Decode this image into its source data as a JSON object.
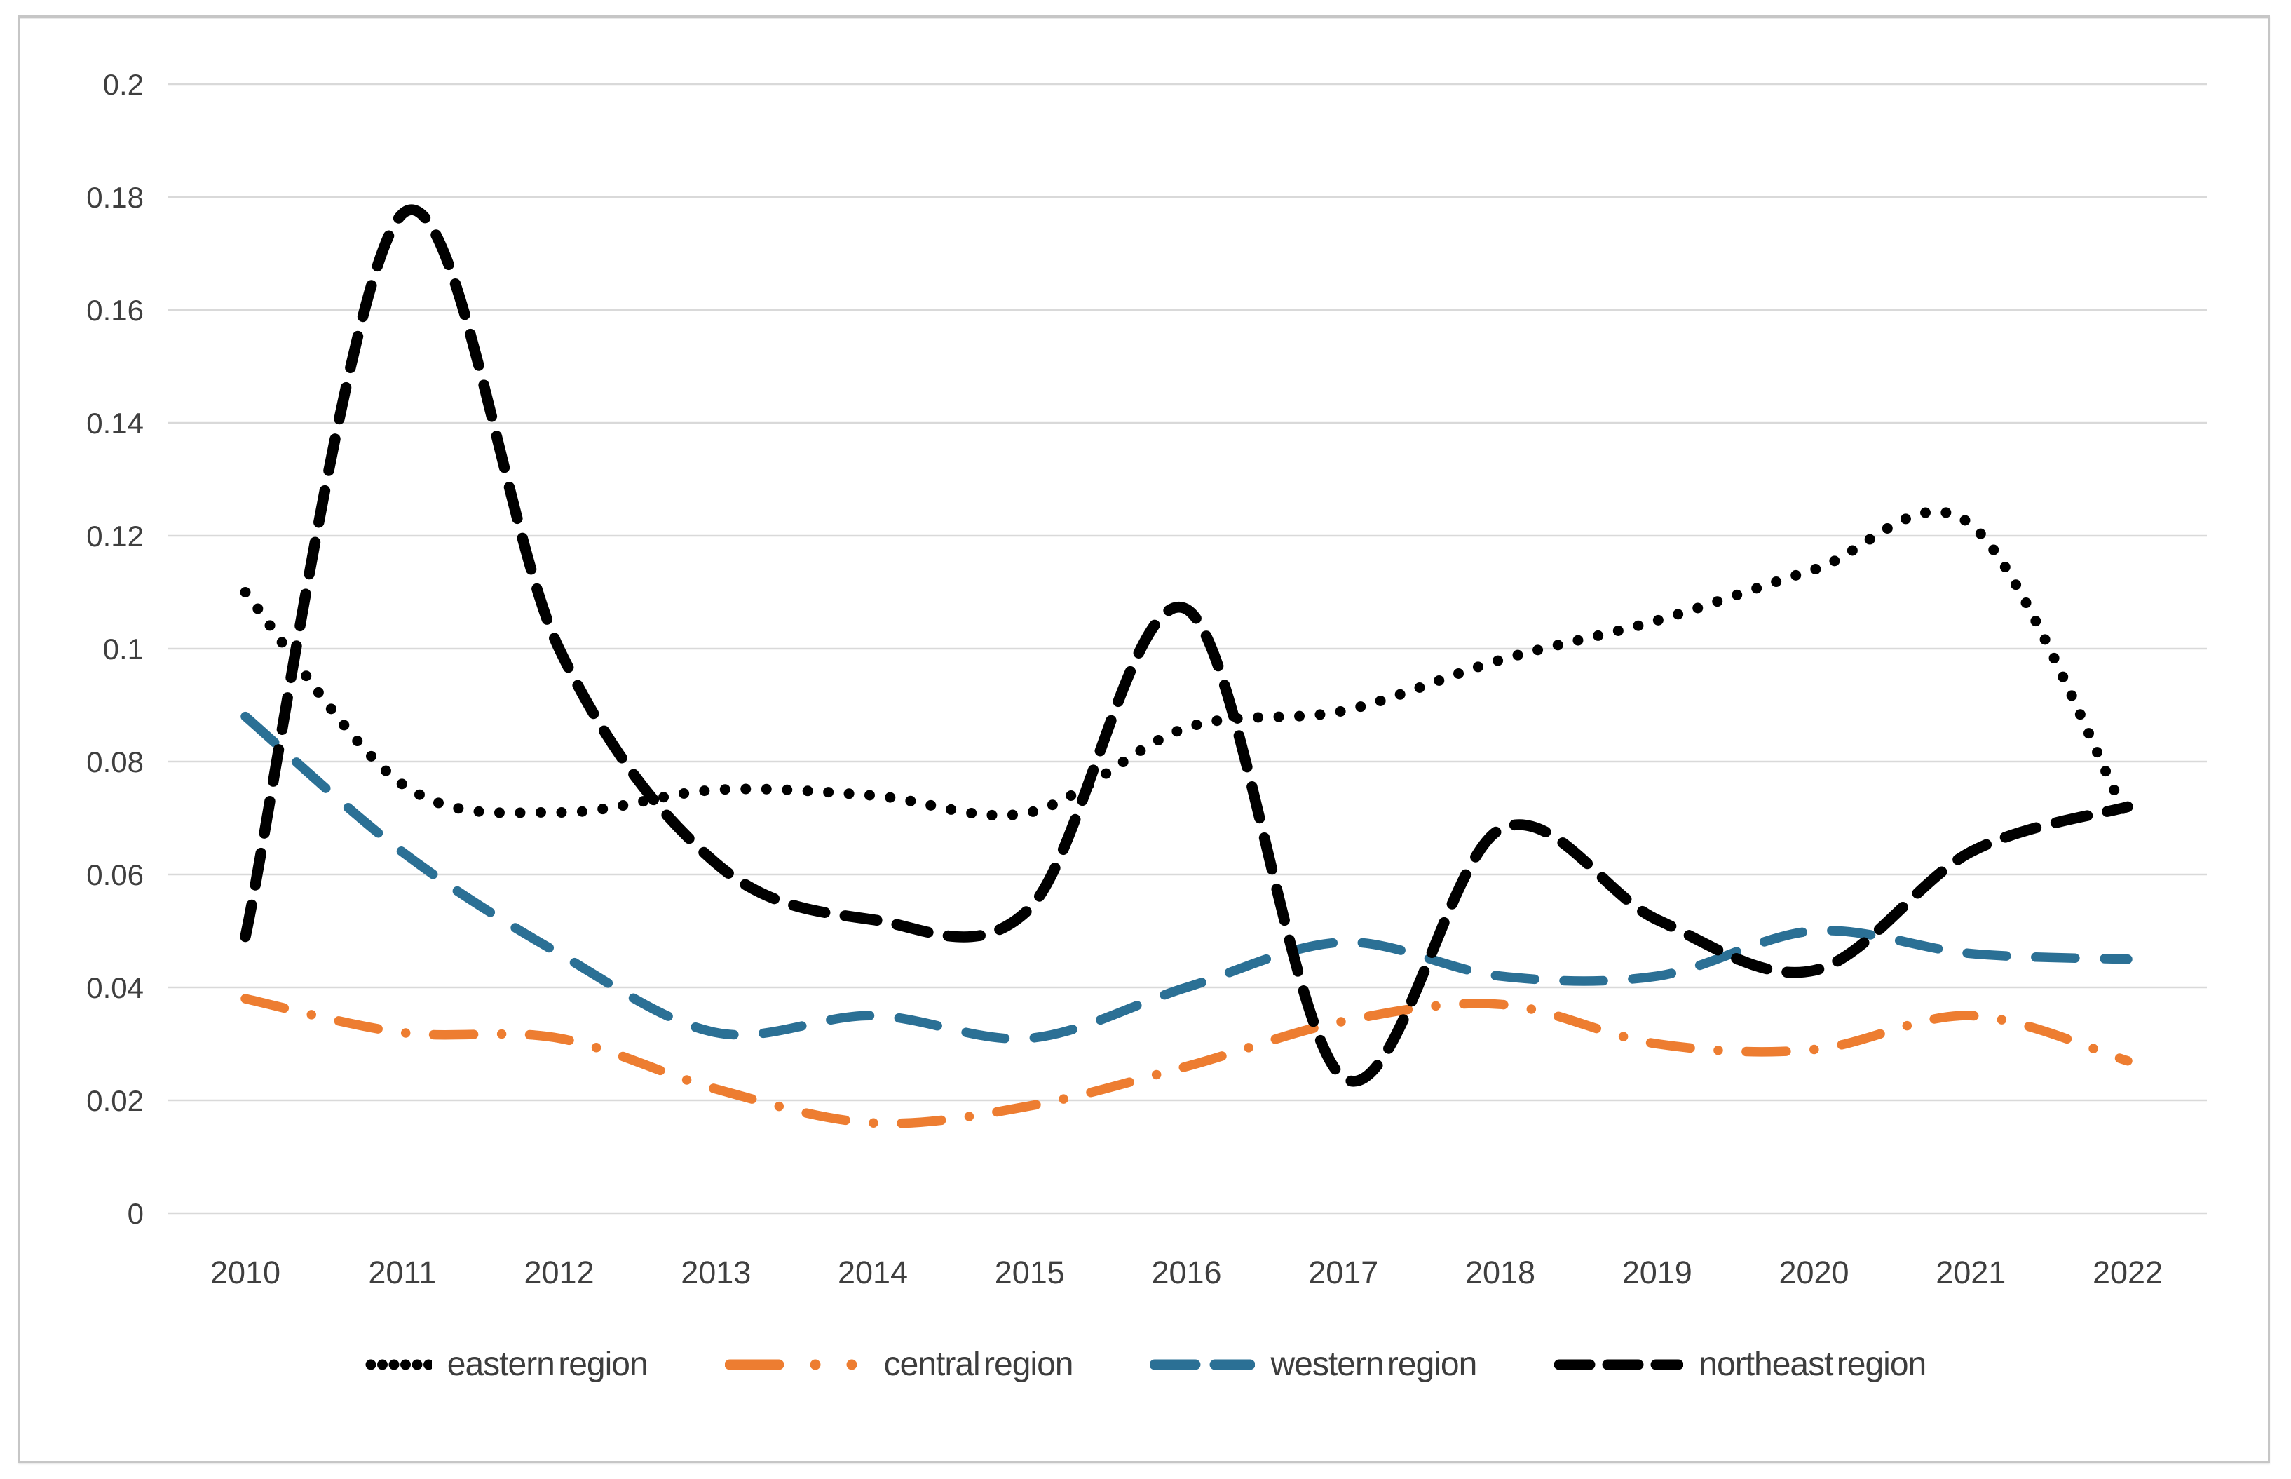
{
  "chart_data": {
    "type": "line",
    "title": "",
    "xlabel": "",
    "ylabel": "",
    "x_labels": [
      "2010",
      "2011",
      "2012",
      "2013",
      "2014",
      "2015",
      "2016",
      "2017",
      "2018",
      "2019",
      "2020",
      "2021",
      "2022"
    ],
    "y_tick_labels": [
      "0.2",
      "0.18",
      "0.16",
      "0.14",
      "0.12",
      "0.1",
      "0.08",
      "0.06",
      "0.04",
      "0.02",
      "0"
    ],
    "ylim": [
      0,
      0.2
    ],
    "grid": "horizontal",
    "line_smoothing": true,
    "legend_position": "bottom",
    "gridline_color": "#d9d9d9",
    "axis_text_color": "#3f3f3f",
    "series": [
      {
        "name": "eastern region",
        "color": "#000000",
        "style": "dotted",
        "values": [
          0.11,
          0.076,
          0.071,
          0.075,
          0.074,
          0.071,
          0.086,
          0.089,
          0.098,
          0.105,
          0.114,
          0.122,
          0.07
        ]
      },
      {
        "name": "central region",
        "color": "#ED7D31",
        "style": "long-dash-dot",
        "values": [
          0.038,
          0.032,
          0.031,
          0.022,
          0.016,
          0.019,
          0.026,
          0.034,
          0.037,
          0.03,
          0.029,
          0.035,
          0.027
        ]
      },
      {
        "name": "western region",
        "color": "#2B7095",
        "style": "dashed",
        "values": [
          0.088,
          0.064,
          0.046,
          0.032,
          0.035,
          0.031,
          0.04,
          0.048,
          0.042,
          0.042,
          0.05,
          0.046,
          0.045
        ]
      },
      {
        "name": "northeast region",
        "color": "#000000",
        "style": "dashed-bold",
        "values": [
          0.049,
          0.177,
          0.1,
          0.062,
          0.052,
          0.054,
          0.107,
          0.024,
          0.068,
          0.052,
          0.043,
          0.064,
          0.072
        ]
      }
    ]
  }
}
